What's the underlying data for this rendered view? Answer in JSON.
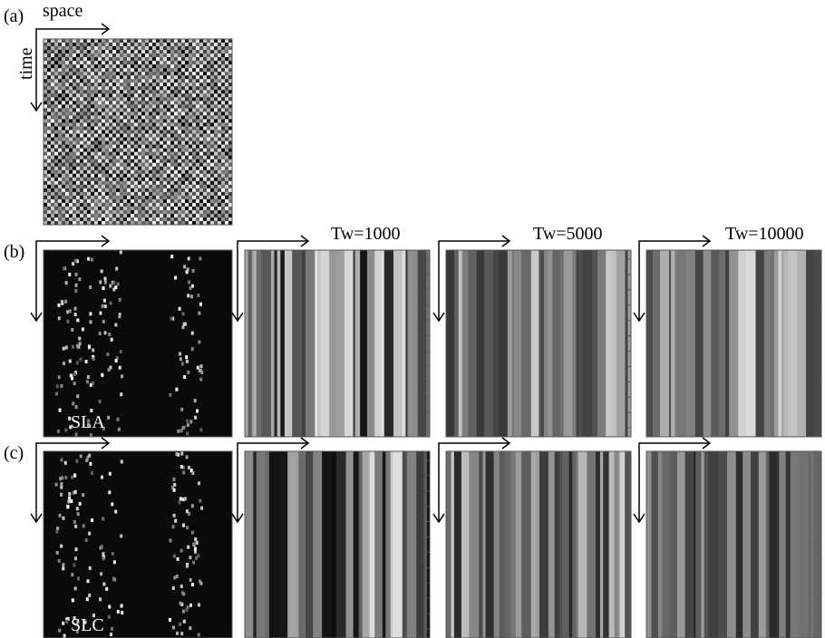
{
  "panel_labels": [
    "(a)",
    "(b)",
    "(c)"
  ],
  "axis_labels": {
    "x": "space",
    "y": "time"
  },
  "window_labels": [
    "Tw=1000",
    "Tw=5000",
    "Tw=10000"
  ],
  "method_labels": [
    "SLA",
    "SLC"
  ]
}
